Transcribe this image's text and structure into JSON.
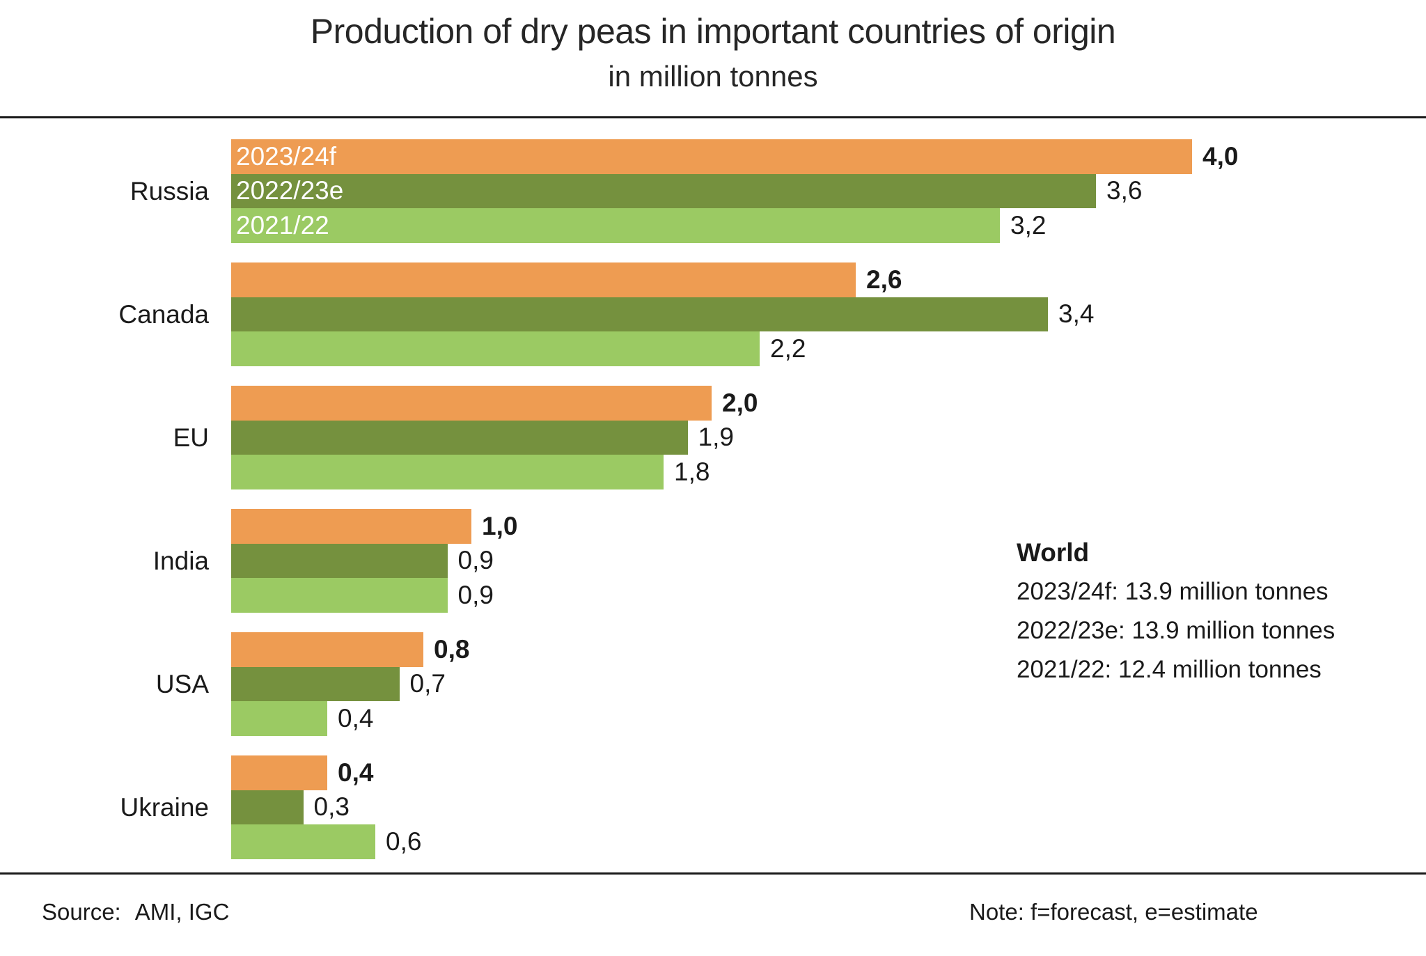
{
  "title": "Production of dry peas in important countries of origin",
  "subtitle": "in million tonnes",
  "world_annotation": {
    "heading": "World",
    "lines": [
      "2023/24f: 13.9 million tonnes",
      "2022/23e: 13.9 million tonnes",
      "2021/22: 12.4 million tonnes"
    ]
  },
  "footer": {
    "source_label": "Source:",
    "source_value": "AMI, IGC",
    "note": "Note: f=forecast, e=estimate"
  },
  "colors": {
    "series_2023_24f": "#EE9C52",
    "series_2022_23e": "#75913E",
    "series_2021_22": "#9BCA63",
    "rule": "#1A1A1A",
    "text": "#1A1A1A"
  },
  "chart_data": {
    "type": "bar",
    "orientation": "horizontal",
    "title": "Production of dry peas in important countries of origin",
    "subtitle": "in million tonnes",
    "unit": "million tonnes",
    "categories": [
      "Russia",
      "Canada",
      "EU",
      "India",
      "USA",
      "Ukraine"
    ],
    "series": [
      {
        "name": "2023/24f",
        "color": "#EE9C52",
        "values": [
          4.0,
          2.6,
          2.0,
          1.0,
          0.8,
          0.4
        ],
        "value_labels": [
          "4,0",
          "2,6",
          "2,0",
          "1,0",
          "0,8",
          "0,4"
        ],
        "label_bold": true
      },
      {
        "name": "2022/23e",
        "color": "#75913E",
        "values": [
          3.6,
          3.4,
          1.9,
          0.9,
          0.7,
          0.3
        ],
        "value_labels": [
          "3,6",
          "3,4",
          "1,9",
          "0,9",
          "0,7",
          "0,3"
        ],
        "label_bold": false
      },
      {
        "name": "2021/22",
        "color": "#9BCA63",
        "values": [
          3.2,
          2.2,
          1.8,
          0.9,
          0.4,
          0.6
        ],
        "value_labels": [
          "3,2",
          "2,2",
          "1,8",
          "0,9",
          "0,4",
          "0,6"
        ],
        "label_bold": false
      }
    ],
    "xlim": [
      0,
      4.4
    ],
    "grid": false,
    "legend_position": "inside-first-group-bars",
    "value_label_decimal_separator": "comma"
  }
}
